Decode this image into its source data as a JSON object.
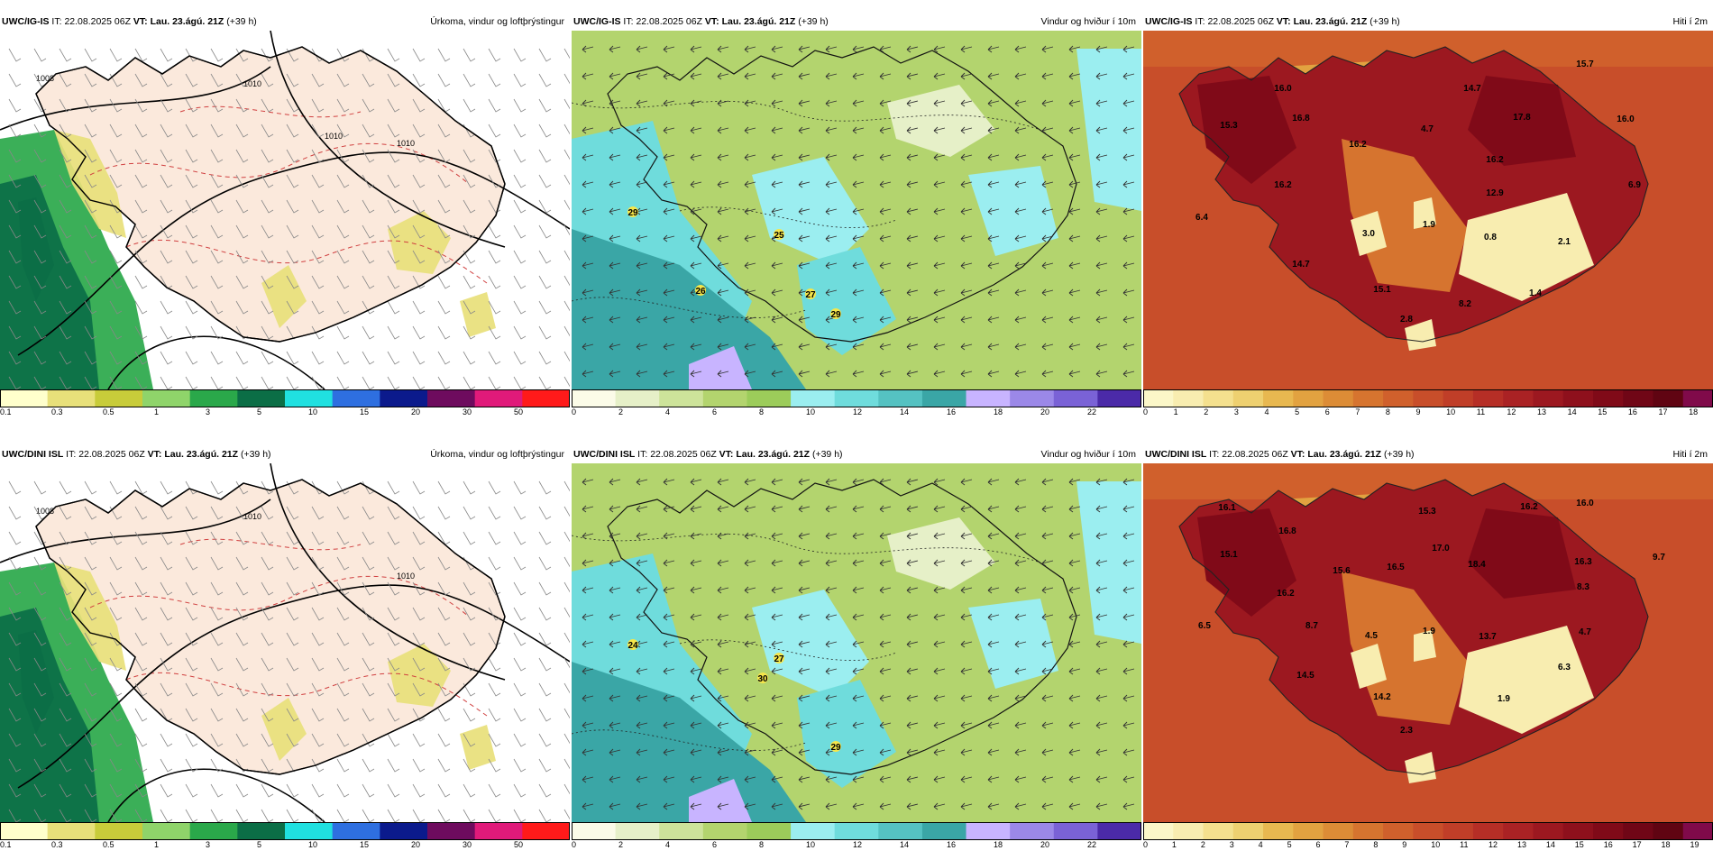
{
  "colors": {
    "land_precip": "#fbe9dc",
    "precip": [
      "#ffffcc",
      "#e8e07a",
      "#c8cc3a",
      "#8fd46a",
      "#2aa84a",
      "#0b6e46",
      "#20e0e0",
      "#2e6fe0",
      "#0b1a8c",
      "#6e0b5e",
      "#e01a7a",
      "#ff1a1a"
    ],
    "wind": [
      "#fbfbe8",
      "#e6f0c8",
      "#cde39a",
      "#b3d46e",
      "#9ccc5a",
      "#9beef0",
      "#6fdcdc",
      "#55c2c2",
      "#3aa6a6",
      "#c8b4ff",
      "#9b88e8",
      "#7a62d6",
      "#4b2aa8"
    ],
    "temp": [
      "#fbf7c8",
      "#f8edb0",
      "#f4e08e",
      "#eed070",
      "#e8b850",
      "#e2a240",
      "#dc8c36",
      "#d6742f",
      "#d0602c",
      "#c84e2a",
      "#c03e28",
      "#b62e26",
      "#aa2224",
      "#9c1820",
      "#8e101c",
      "#800a18",
      "#700616",
      "#600412",
      "#800a4a"
    ]
  },
  "panels": [
    {
      "id": "igis-precip",
      "model": "UWC/IG-IS",
      "it_label": "IT:",
      "it": "22.08.2025 06Z",
      "vt_label": "VT:",
      "vt": "Lau. 23.ágú. 21Z",
      "lead": "(+39 h)",
      "title": "Úrkoma, vindur og loftþrýstingur",
      "kind": "precip",
      "ticks": [
        "0.1",
        "0.3",
        "0.5",
        "1",
        "3",
        "5",
        "10",
        "15",
        "20",
        "30",
        "50"
      ],
      "isobars": [
        "1008",
        "1010",
        "1010",
        "1010"
      ],
      "labels": []
    },
    {
      "id": "igis-wind",
      "model": "UWC/IG-IS",
      "it_label": "IT:",
      "it": "22.08.2025 06Z",
      "vt_label": "VT:",
      "vt": "Lau. 23.ágú. 21Z",
      "lead": "(+39 h)",
      "title": "Vindur og hviður í 10m",
      "kind": "wind",
      "ticks": [
        "0",
        "2",
        "4",
        "6",
        "8",
        "10",
        "12",
        "14",
        "16",
        "18",
        "20",
        "22"
      ],
      "isobars": [],
      "labels": [
        "29",
        "25",
        "26",
        "27",
        "29"
      ]
    },
    {
      "id": "igis-temp",
      "model": "UWC/IG-IS",
      "it_label": "IT:",
      "it": "22.08.2025 06Z",
      "vt_label": "VT:",
      "vt": "Lau. 23.ágú. 21Z",
      "lead": "(+39 h)",
      "title": "Hiti í 2m",
      "kind": "temp",
      "ticks": [
        "0",
        "1",
        "2",
        "3",
        "4",
        "5",
        "6",
        "7",
        "8",
        "9",
        "10",
        "11",
        "12",
        "13",
        "14",
        "15",
        "16",
        "17",
        "18"
      ],
      "isobars": [],
      "labels": [
        "15.7",
        "16.0",
        "14.7",
        "15.3",
        "16.8",
        "4.7",
        "17.8",
        "16.0",
        "16.2",
        "16.2",
        "16.2",
        "6.9",
        "6.4",
        "12.9",
        "3.0",
        "1.9",
        "0.8",
        "2.1",
        "14.7",
        "15.1",
        "8.2",
        "1.4",
        "2.8"
      ]
    },
    {
      "id": "dini-precip",
      "model": "UWC/DINI ISL",
      "it_label": "IT:",
      "it": "22.08.2025 06Z",
      "vt_label": "VT:",
      "vt": "Lau. 23.ágú. 21Z",
      "lead": "(+39 h)",
      "title": "Úrkoma, vindur og loftþrýstingur",
      "kind": "precip",
      "ticks": [
        "0.1",
        "0.3",
        "0.5",
        "1",
        "3",
        "5",
        "10",
        "15",
        "20",
        "30",
        "50"
      ],
      "isobars": [
        "1008",
        "1010",
        "1010"
      ],
      "labels": []
    },
    {
      "id": "dini-wind",
      "model": "UWC/DINI ISL",
      "it_label": "IT:",
      "it": "22.08.2025 06Z",
      "vt_label": "VT:",
      "vt": "Lau. 23.ágú. 21Z",
      "lead": "(+39 h)",
      "title": "Vindur og hviður í 10m",
      "kind": "wind",
      "ticks": [
        "0",
        "2",
        "4",
        "6",
        "8",
        "10",
        "12",
        "14",
        "16",
        "18",
        "20",
        "22"
      ],
      "isobars": [],
      "labels": [
        "24",
        "27",
        "30",
        "29"
      ]
    },
    {
      "id": "dini-temp",
      "model": "UWC/DINI ISL",
      "it_label": "IT:",
      "it": "22.08.2025 06Z",
      "vt_label": "VT:",
      "vt": "Lau. 23.ágú. 21Z",
      "lead": "(+39 h)",
      "title": "Hiti í 2m",
      "kind": "temp",
      "ticks": [
        "0",
        "1",
        "2",
        "3",
        "4",
        "5",
        "6",
        "7",
        "8",
        "9",
        "10",
        "11",
        "12",
        "13",
        "14",
        "15",
        "16",
        "17",
        "18",
        "19"
      ],
      "isobars": [],
      "labels": [
        "16.1",
        "15.3",
        "16.2",
        "16.0",
        "16.8",
        "17.0",
        "15.1",
        "15.6",
        "16.5",
        "18.4",
        "16.3",
        "9.7",
        "16.2",
        "8.3",
        "6.5",
        "8.7",
        "4.5",
        "1.9",
        "13.7",
        "4.7",
        "14.5",
        "6.3",
        "14.2",
        "1.9",
        "2.3"
      ]
    }
  ]
}
